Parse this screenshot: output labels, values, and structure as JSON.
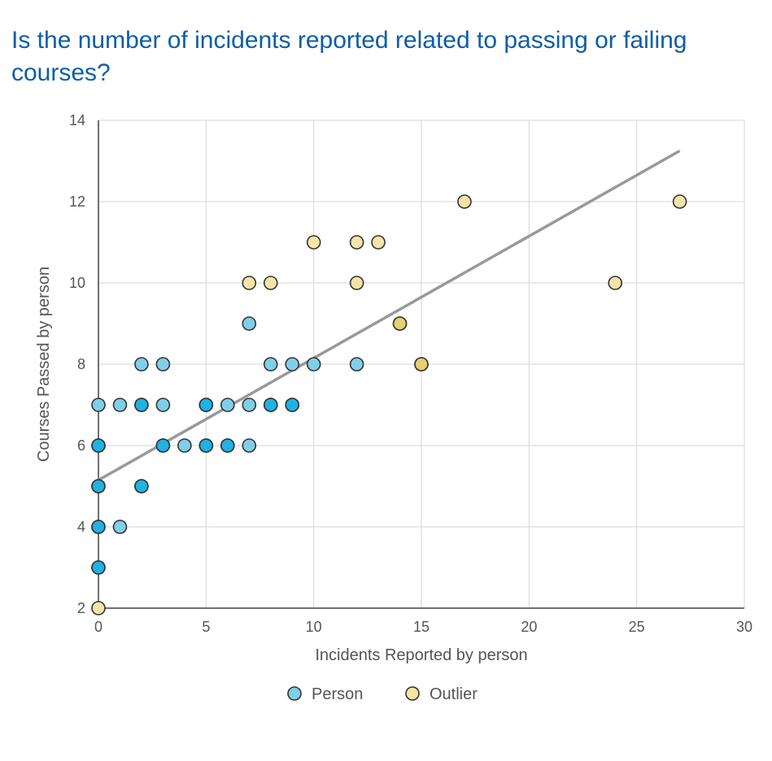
{
  "chart_data": {
    "type": "scatter",
    "title": "Is the number of incidents reported related to passing or failing courses?",
    "xlabel": "Incidents Reported by person",
    "ylabel": "Courses Passed by person",
    "xlim": [
      0,
      30
    ],
    "ylim": [
      2,
      14
    ],
    "x_ticks": [
      0,
      5,
      10,
      15,
      20,
      25,
      30
    ],
    "y_ticks": [
      2,
      4,
      6,
      8,
      10,
      12,
      14
    ],
    "grid": true,
    "legend_position": "bottom",
    "colors": {
      "person": "#7fcfe9",
      "person_dense": "#1fb2e3",
      "outlier": "#f3e5a6",
      "outlier_dense": "#e6d074",
      "trendline": "#999999",
      "grid": "#dddddd",
      "title": "#0b5ea8"
    },
    "series": [
      {
        "name": "Person",
        "points": [
          [
            0,
            7
          ],
          [
            0,
            6
          ],
          [
            0,
            6
          ],
          [
            0,
            5
          ],
          [
            0,
            5
          ],
          [
            0,
            4
          ],
          [
            0,
            4
          ],
          [
            0,
            3
          ],
          [
            0,
            3
          ],
          [
            1,
            7
          ],
          [
            1,
            4
          ],
          [
            2,
            8
          ],
          [
            2,
            7
          ],
          [
            2,
            7
          ],
          [
            2,
            5
          ],
          [
            2,
            5
          ],
          [
            3,
            8
          ],
          [
            3,
            7
          ],
          [
            3,
            6
          ],
          [
            3,
            6
          ],
          [
            4,
            6
          ],
          [
            5,
            7
          ],
          [
            5,
            7
          ],
          [
            5,
            6
          ],
          [
            5,
            6
          ],
          [
            6,
            7
          ],
          [
            6,
            6
          ],
          [
            6,
            6
          ],
          [
            7,
            9
          ],
          [
            7,
            7
          ],
          [
            7,
            6
          ],
          [
            8,
            8
          ],
          [
            8,
            7
          ],
          [
            8,
            7
          ],
          [
            9,
            8
          ],
          [
            9,
            7
          ],
          [
            9,
            7
          ],
          [
            10,
            8
          ],
          [
            12,
            8
          ]
        ]
      },
      {
        "name": "Outlier",
        "points": [
          [
            0,
            2
          ],
          [
            7,
            10
          ],
          [
            8,
            10
          ],
          [
            10,
            11
          ],
          [
            12,
            11
          ],
          [
            13,
            11
          ],
          [
            12,
            10
          ],
          [
            14,
            9
          ],
          [
            14,
            9
          ],
          [
            15,
            8
          ],
          [
            15,
            8
          ],
          [
            17,
            12
          ],
          [
            24,
            10
          ],
          [
            27,
            12
          ]
        ]
      }
    ],
    "trendline": {
      "x": [
        0,
        27
      ],
      "y": [
        5.15,
        13.25
      ]
    }
  }
}
